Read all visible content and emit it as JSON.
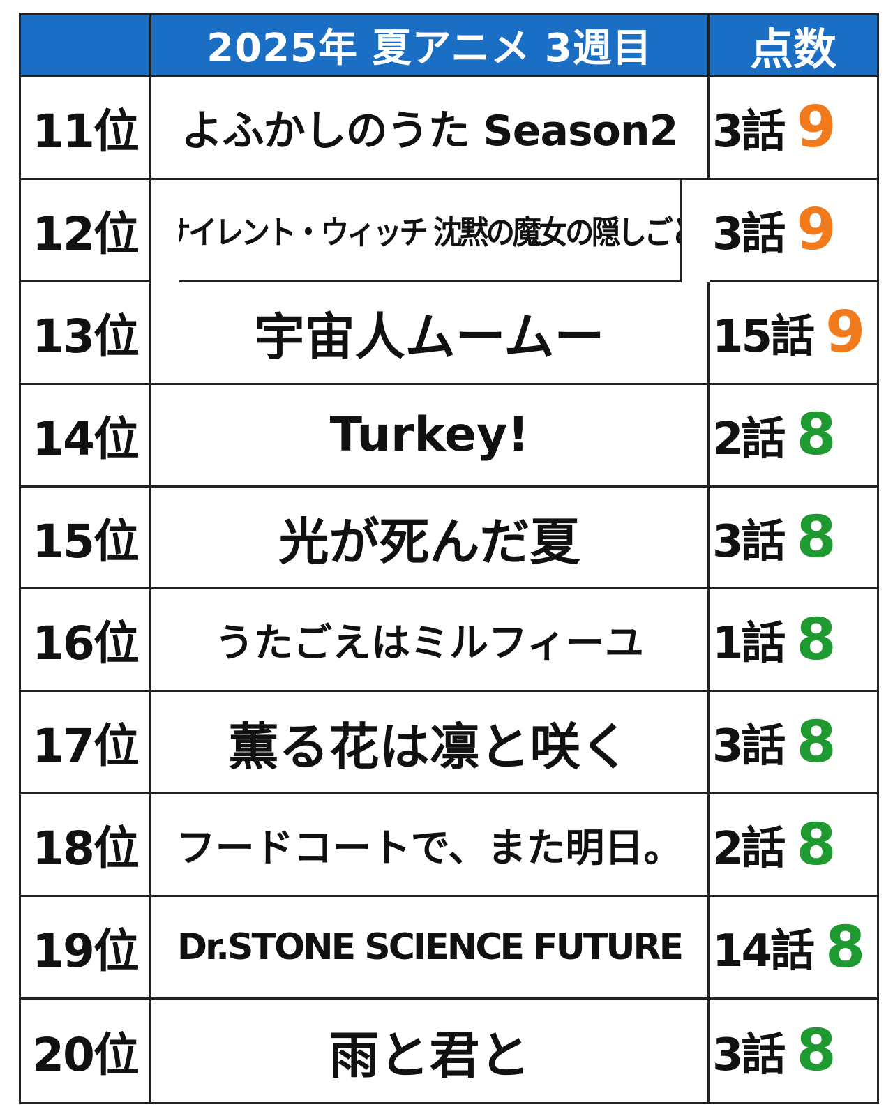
{
  "header": {
    "blank": "",
    "title": "2025年 夏アニメ 3週目",
    "score_label": "点数"
  },
  "colors": {
    "header_bg": "#1a6fc4",
    "score_9": "#f07a1c",
    "score_8": "#1e9a30"
  },
  "rows": [
    {
      "rank": "11位",
      "title": "よふかしのうた Season2",
      "episode": "3話",
      "score": "9"
    },
    {
      "rank": "12位",
      "title": "サイレント・ウィッチ 沈黙の魔女の隠しごと",
      "episode": "3話",
      "score": "9"
    },
    {
      "rank": "13位",
      "title": "宇宙人ムームー",
      "episode": "15話",
      "score": "9"
    },
    {
      "rank": "14位",
      "title": "Turkey!",
      "episode": "2話",
      "score": "8"
    },
    {
      "rank": "15位",
      "title": "光が死んだ夏",
      "episode": "3話",
      "score": "8"
    },
    {
      "rank": "16位",
      "title": "うたごえはミルフィーユ",
      "episode": "1話",
      "score": "8"
    },
    {
      "rank": "17位",
      "title": "薫る花は凛と咲く",
      "episode": "3話",
      "score": "8"
    },
    {
      "rank": "18位",
      "title": "フードコートで、また明日。",
      "episode": "2話",
      "score": "8"
    },
    {
      "rank": "19位",
      "title": "Dr.STONE SCIENCE FUTURE",
      "episode": "14話",
      "score": "8"
    },
    {
      "rank": "20位",
      "title": "雨と君と",
      "episode": "3話",
      "score": "8"
    }
  ]
}
